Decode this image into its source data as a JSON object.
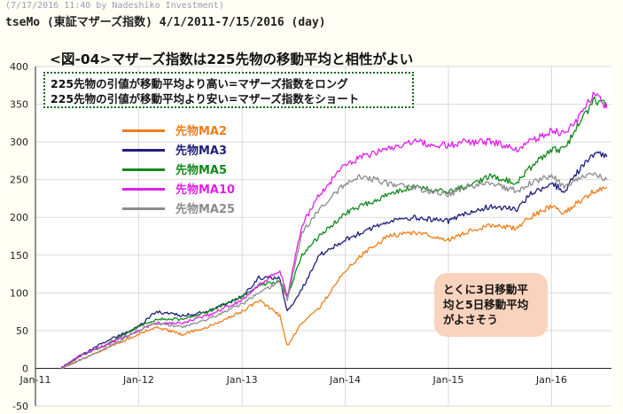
{
  "stamp": "(7/17/2016 11:40 by Nadeshiko Investment)",
  "header": "tseMo (東証マザーズ指数) 4/1/2011-7/15/2016 (day)",
  "title": "<図-04>マザーズ指数は225先物の移動平均と相性がよい",
  "note": {
    "line1": "225先物の引値が移動平均より高い=マザーズ指数をロング",
    "line2": "225先物の引値が移動平均より安い=マザーズ指数をショート"
  },
  "callout": {
    "line1": "とくに3日移動平",
    "line2": "均と5日移動平均",
    "line3": "がよさそう"
  },
  "chart_data": {
    "type": "line",
    "x_unit": "date",
    "xlim": [
      "2011-01-01",
      "2016-07-31"
    ],
    "ylim": [
      -50,
      400
    ],
    "yticks": [
      -50,
      0,
      50,
      100,
      150,
      200,
      250,
      300,
      350,
      400
    ],
    "xticks": [
      {
        "label": "Jan-11",
        "date": "2011-01-01"
      },
      {
        "label": "Jan-12",
        "date": "2012-01-01"
      },
      {
        "label": "Jan-13",
        "date": "2013-01-01"
      },
      {
        "label": "Jan-14",
        "date": "2014-01-01"
      },
      {
        "label": "Jan-15",
        "date": "2015-01-01"
      },
      {
        "label": "Jan-16",
        "date": "2016-01-01"
      }
    ],
    "grid": true,
    "legend_position": "top-left",
    "series": [
      {
        "name": "先物MA2",
        "color": "#f07d1a",
        "points": [
          [
            "2011-04-01",
            0
          ],
          [
            "2011-06-01",
            10
          ],
          [
            "2011-09-01",
            25
          ],
          [
            "2012-01-01",
            45
          ],
          [
            "2012-03-01",
            55
          ],
          [
            "2012-06-01",
            45
          ],
          [
            "2012-09-01",
            55
          ],
          [
            "2013-01-01",
            75
          ],
          [
            "2013-03-01",
            90
          ],
          [
            "2013-05-15",
            70
          ],
          [
            "2013-06-10",
            30
          ],
          [
            "2013-08-01",
            60
          ],
          [
            "2013-10-01",
            80
          ],
          [
            "2014-01-01",
            130
          ],
          [
            "2014-03-01",
            150
          ],
          [
            "2014-06-01",
            175
          ],
          [
            "2014-09-01",
            180
          ],
          [
            "2015-01-01",
            170
          ],
          [
            "2015-03-01",
            180
          ],
          [
            "2015-06-01",
            190
          ],
          [
            "2015-09-01",
            185
          ],
          [
            "2015-10-15",
            200
          ],
          [
            "2016-01-01",
            215
          ],
          [
            "2016-02-15",
            205
          ],
          [
            "2016-04-01",
            220
          ],
          [
            "2016-06-01",
            235
          ],
          [
            "2016-07-15",
            240
          ]
        ]
      },
      {
        "name": "先物MA3",
        "color": "#1f1f7a",
        "points": [
          [
            "2011-04-01",
            0
          ],
          [
            "2011-06-01",
            15
          ],
          [
            "2011-09-01",
            35
          ],
          [
            "2012-01-01",
            55
          ],
          [
            "2012-03-01",
            75
          ],
          [
            "2012-06-01",
            70
          ],
          [
            "2012-09-01",
            75
          ],
          [
            "2013-01-01",
            95
          ],
          [
            "2013-03-01",
            120
          ],
          [
            "2013-05-15",
            120
          ],
          [
            "2013-06-10",
            75
          ],
          [
            "2013-08-01",
            105
          ],
          [
            "2013-10-01",
            150
          ],
          [
            "2014-01-01",
            170
          ],
          [
            "2014-03-01",
            180
          ],
          [
            "2014-06-01",
            195
          ],
          [
            "2014-09-01",
            200
          ],
          [
            "2015-01-01",
            195
          ],
          [
            "2015-03-01",
            205
          ],
          [
            "2015-06-01",
            215
          ],
          [
            "2015-09-01",
            210
          ],
          [
            "2015-10-15",
            230
          ],
          [
            "2016-01-01",
            245
          ],
          [
            "2016-02-15",
            235
          ],
          [
            "2016-04-01",
            260
          ],
          [
            "2016-06-01",
            285
          ],
          [
            "2016-07-15",
            280
          ]
        ]
      },
      {
        "name": "先物MA5",
        "color": "#12891c",
        "points": [
          [
            "2011-04-01",
            0
          ],
          [
            "2011-06-01",
            15
          ],
          [
            "2011-09-01",
            30
          ],
          [
            "2012-01-01",
            55
          ],
          [
            "2012-03-01",
            65
          ],
          [
            "2012-06-01",
            65
          ],
          [
            "2012-09-01",
            75
          ],
          [
            "2013-01-01",
            95
          ],
          [
            "2013-03-01",
            110
          ],
          [
            "2013-05-15",
            115
          ],
          [
            "2013-06-10",
            95
          ],
          [
            "2013-08-01",
            150
          ],
          [
            "2013-10-01",
            175
          ],
          [
            "2014-01-01",
            205
          ],
          [
            "2014-03-01",
            215
          ],
          [
            "2014-06-01",
            230
          ],
          [
            "2014-09-01",
            240
          ],
          [
            "2015-01-01",
            235
          ],
          [
            "2015-03-01",
            240
          ],
          [
            "2015-06-01",
            255
          ],
          [
            "2015-09-01",
            245
          ],
          [
            "2015-10-15",
            265
          ],
          [
            "2016-01-01",
            290
          ],
          [
            "2016-02-15",
            290
          ],
          [
            "2016-04-01",
            320
          ],
          [
            "2016-06-01",
            355
          ],
          [
            "2016-07-15",
            350
          ]
        ]
      },
      {
        "name": "先物MA10",
        "color": "#e020e8",
        "points": [
          [
            "2011-04-01",
            0
          ],
          [
            "2011-06-01",
            15
          ],
          [
            "2011-09-01",
            30
          ],
          [
            "2012-01-01",
            50
          ],
          [
            "2012-03-01",
            60
          ],
          [
            "2012-06-01",
            60
          ],
          [
            "2012-09-01",
            70
          ],
          [
            "2013-01-01",
            90
          ],
          [
            "2013-03-01",
            110
          ],
          [
            "2013-05-15",
            130
          ],
          [
            "2013-06-10",
            95
          ],
          [
            "2013-08-01",
            190
          ],
          [
            "2013-10-01",
            230
          ],
          [
            "2014-01-01",
            270
          ],
          [
            "2014-03-01",
            280
          ],
          [
            "2014-06-01",
            290
          ],
          [
            "2014-09-01",
            300
          ],
          [
            "2015-01-01",
            295
          ],
          [
            "2015-03-01",
            300
          ],
          [
            "2015-06-01",
            300
          ],
          [
            "2015-09-01",
            290
          ],
          [
            "2015-10-15",
            300
          ],
          [
            "2016-01-01",
            315
          ],
          [
            "2016-02-15",
            310
          ],
          [
            "2016-04-01",
            330
          ],
          [
            "2016-06-01",
            365
          ],
          [
            "2016-07-15",
            345
          ]
        ]
      },
      {
        "name": "先物MA25",
        "color": "#8c8c8c",
        "points": [
          [
            "2011-04-01",
            0
          ],
          [
            "2011-06-01",
            10
          ],
          [
            "2011-09-01",
            25
          ],
          [
            "2012-01-01",
            50
          ],
          [
            "2012-03-01",
            60
          ],
          [
            "2012-06-01",
            55
          ],
          [
            "2012-09-01",
            65
          ],
          [
            "2013-01-01",
            85
          ],
          [
            "2013-03-01",
            100
          ],
          [
            "2013-05-15",
            115
          ],
          [
            "2013-06-10",
            90
          ],
          [
            "2013-08-01",
            180
          ],
          [
            "2013-10-01",
            210
          ],
          [
            "2014-01-01",
            245
          ],
          [
            "2014-03-01",
            255
          ],
          [
            "2014-06-01",
            245
          ],
          [
            "2014-09-01",
            240
          ],
          [
            "2015-01-01",
            230
          ],
          [
            "2015-03-01",
            240
          ],
          [
            "2015-06-01",
            245
          ],
          [
            "2015-09-01",
            235
          ],
          [
            "2015-10-15",
            245
          ],
          [
            "2016-01-01",
            255
          ],
          [
            "2016-02-15",
            240
          ],
          [
            "2016-04-01",
            250
          ],
          [
            "2016-06-01",
            260
          ],
          [
            "2016-07-15",
            250
          ]
        ]
      }
    ]
  }
}
